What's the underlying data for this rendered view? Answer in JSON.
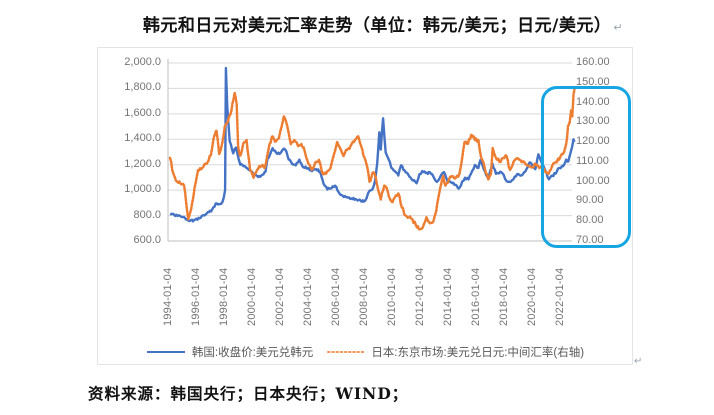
{
  "page": {
    "title": "韩元和日元对美元汇率走势（单位：韩元/美元；日元/美元）",
    "title_end_mark": "↵",
    "frame_end_mark": "↵",
    "source_note": "资料来源：韩国央行；日本央行；WIND；"
  },
  "colors": {
    "krw_line": "#4472C4",
    "jpy_line": "#ED7D31",
    "grid": "#D9D9D9",
    "axis_spine": "#BFBFBF",
    "axis_text": "#757575",
    "legend_text": "#595959",
    "highlight_box": "#16A5E3"
  },
  "chart_data": {
    "type": "line",
    "title": "韩元和日元对美元汇率走势（单位：韩元/美元；日元/美元）",
    "grid": true,
    "legend_position": "bottom",
    "x_ticks": [
      "1994-01-04",
      "1996-01-04",
      "1998-01-04",
      "2000-01-04",
      "2002-01-04",
      "2004-01-04",
      "2006-01-04",
      "2008-01-04",
      "2010-01-04",
      "2012-01-04",
      "2014-01-04",
      "2016-01-04",
      "2018-01-04",
      "2020-01-04",
      "2022-01-04"
    ],
    "y_left": {
      "unit": "韩元/美元",
      "min": 600,
      "max": 2000,
      "tick_labels": [
        "2,000.0",
        "1,800.0",
        "1,600.0",
        "1,400.0",
        "1,200.0",
        "1,000.0",
        "800.0",
        "600.0"
      ],
      "tick_values": [
        2000,
        1800,
        1600,
        1400,
        1200,
        1000,
        800,
        600
      ]
    },
    "y_right": {
      "unit": "日元/美元",
      "min": 70,
      "max": 160,
      "tick_labels": [
        "160.00",
        "150.00",
        "140.00",
        "130.00",
        "120.00",
        "110.00",
        "100.00",
        "90.00",
        "80.00",
        "70.00"
      ],
      "tick_values": [
        160,
        150,
        140,
        130,
        120,
        110,
        100,
        90,
        80,
        70
      ]
    },
    "series": [
      {
        "name": "韩国:收盘价:美元兑韩元",
        "axis": "left",
        "color": "#4472C4",
        "line_style": "solid",
        "points": [
          [
            1994.0,
            812
          ],
          [
            1994.3,
            806
          ],
          [
            1994.6,
            802
          ],
          [
            1995.0,
            788
          ],
          [
            1995.4,
            757
          ],
          [
            1995.8,
            768
          ],
          [
            1996.2,
            785
          ],
          [
            1996.6,
            815
          ],
          [
            1997.0,
            848
          ],
          [
            1997.25,
            895
          ],
          [
            1997.5,
            890
          ],
          [
            1997.75,
            912
          ],
          [
            1997.92,
            1000
          ],
          [
            1997.98,
            1960
          ],
          [
            1998.08,
            1650
          ],
          [
            1998.25,
            1385
          ],
          [
            1998.5,
            1290
          ],
          [
            1998.7,
            1335
          ],
          [
            1998.9,
            1240
          ],
          [
            1999.0,
            1200
          ],
          [
            1999.3,
            1190
          ],
          [
            1999.6,
            1160
          ],
          [
            1999.9,
            1135
          ],
          [
            2000.2,
            1112
          ],
          [
            2000.5,
            1115
          ],
          [
            2000.8,
            1145
          ],
          [
            2000.95,
            1250
          ],
          [
            2001.1,
            1275
          ],
          [
            2001.3,
            1330
          ],
          [
            2001.55,
            1295
          ],
          [
            2001.8,
            1285
          ],
          [
            2002.0,
            1315
          ],
          [
            2002.2,
            1320
          ],
          [
            2002.45,
            1240
          ],
          [
            2002.7,
            1205
          ],
          [
            2002.95,
            1195
          ],
          [
            2003.2,
            1240
          ],
          [
            2003.5,
            1180
          ],
          [
            2003.8,
            1170
          ],
          [
            2004.1,
            1150
          ],
          [
            2004.4,
            1165
          ],
          [
            2004.7,
            1145
          ],
          [
            2004.95,
            1045
          ],
          [
            2005.2,
            1005
          ],
          [
            2005.5,
            1015
          ],
          [
            2005.75,
            1035
          ],
          [
            2006.0,
            985
          ],
          [
            2006.3,
            955
          ],
          [
            2006.6,
            945
          ],
          [
            2006.9,
            935
          ],
          [
            2007.2,
            930
          ],
          [
            2007.5,
            925
          ],
          [
            2007.8,
            910
          ],
          [
            2008.0,
            940
          ],
          [
            2008.2,
            995
          ],
          [
            2008.4,
            1005
          ],
          [
            2008.6,
            1075
          ],
          [
            2008.75,
            1210
          ],
          [
            2008.9,
            1455
          ],
          [
            2009.0,
            1320
          ],
          [
            2009.17,
            1565
          ],
          [
            2009.35,
            1295
          ],
          [
            2009.55,
            1245
          ],
          [
            2009.75,
            1175
          ],
          [
            2010.0,
            1150
          ],
          [
            2010.25,
            1115
          ],
          [
            2010.45,
            1195
          ],
          [
            2010.7,
            1155
          ],
          [
            2010.95,
            1125
          ],
          [
            2011.2,
            1085
          ],
          [
            2011.55,
            1055
          ],
          [
            2011.75,
            1125
          ],
          [
            2011.95,
            1150
          ],
          [
            2012.2,
            1135
          ],
          [
            2012.5,
            1140
          ],
          [
            2012.8,
            1095
          ],
          [
            2013.0,
            1065
          ],
          [
            2013.25,
            1110
          ],
          [
            2013.5,
            1142
          ],
          [
            2013.75,
            1070
          ],
          [
            2014.0,
            1062
          ],
          [
            2014.25,
            1042
          ],
          [
            2014.55,
            1012
          ],
          [
            2014.8,
            1068
          ],
          [
            2015.0,
            1098
          ],
          [
            2015.25,
            1085
          ],
          [
            2015.5,
            1150
          ],
          [
            2015.7,
            1198
          ],
          [
            2015.95,
            1175
          ],
          [
            2016.1,
            1238
          ],
          [
            2016.35,
            1160
          ],
          [
            2016.65,
            1095
          ],
          [
            2016.95,
            1208
          ],
          [
            2017.2,
            1128
          ],
          [
            2017.5,
            1145
          ],
          [
            2017.75,
            1120
          ],
          [
            2017.95,
            1072
          ],
          [
            2018.2,
            1065
          ],
          [
            2018.45,
            1085
          ],
          [
            2018.7,
            1125
          ],
          [
            2018.95,
            1115
          ],
          [
            2019.2,
            1140
          ],
          [
            2019.45,
            1180
          ],
          [
            2019.6,
            1218
          ],
          [
            2019.8,
            1190
          ],
          [
            2020.0,
            1165
          ],
          [
            2020.22,
            1282
          ],
          [
            2020.4,
            1230
          ],
          [
            2020.6,
            1185
          ],
          [
            2020.8,
            1135
          ],
          [
            2020.97,
            1085
          ],
          [
            2021.2,
            1115
          ],
          [
            2021.45,
            1130
          ],
          [
            2021.7,
            1175
          ],
          [
            2021.9,
            1190
          ],
          [
            2022.05,
            1200
          ],
          [
            2022.2,
            1240
          ],
          [
            2022.35,
            1225
          ],
          [
            2022.5,
            1290
          ],
          [
            2022.62,
            1340
          ],
          [
            2022.72,
            1400
          ],
          [
            2022.78,
            1380
          ]
        ]
      },
      {
        "name": "日本:东京市场:美元兑日元:中间汇率(右轴)",
        "axis": "right",
        "color": "#ED7D31",
        "line_style": "dotted",
        "points": [
          [
            1994.0,
            112
          ],
          [
            1994.25,
            104
          ],
          [
            1994.5,
            100
          ],
          [
            1994.75,
            99
          ],
          [
            1995.0,
            98
          ],
          [
            1995.3,
            81
          ],
          [
            1995.5,
            86
          ],
          [
            1995.75,
            97
          ],
          [
            1996.0,
            106
          ],
          [
            1996.3,
            107
          ],
          [
            1996.6,
            109
          ],
          [
            1996.9,
            113
          ],
          [
            1997.1,
            122
          ],
          [
            1997.3,
            126
          ],
          [
            1997.5,
            114
          ],
          [
            1997.7,
            119
          ],
          [
            1997.9,
            128
          ],
          [
            1998.1,
            130
          ],
          [
            1998.3,
            134
          ],
          [
            1998.6,
            145
          ],
          [
            1998.75,
            139
          ],
          [
            1998.85,
            118
          ],
          [
            1999.0,
            113
          ],
          [
            1999.2,
            119
          ],
          [
            1999.45,
            121
          ],
          [
            1999.7,
            106
          ],
          [
            1999.95,
            102
          ],
          [
            2000.2,
            106
          ],
          [
            2000.5,
            108
          ],
          [
            2000.75,
            107
          ],
          [
            2001.0,
            116
          ],
          [
            2001.25,
            123
          ],
          [
            2001.5,
            120
          ],
          [
            2001.75,
            122
          ],
          [
            2001.95,
            128
          ],
          [
            2002.1,
            133
          ],
          [
            2002.35,
            128
          ],
          [
            2002.6,
            119
          ],
          [
            2002.85,
            121
          ],
          [
            2003.1,
            118
          ],
          [
            2003.35,
            119
          ],
          [
            2003.6,
            115
          ],
          [
            2003.85,
            109
          ],
          [
            2004.1,
            106
          ],
          [
            2004.35,
            110
          ],
          [
            2004.6,
            111
          ],
          [
            2004.85,
            104
          ],
          [
            2005.1,
            104
          ],
          [
            2005.35,
            106
          ],
          [
            2005.6,
            112
          ],
          [
            2005.9,
            120
          ],
          [
            2006.1,
            117
          ],
          [
            2006.35,
            113
          ],
          [
            2006.6,
            116
          ],
          [
            2006.85,
            118
          ],
          [
            2007.1,
            120
          ],
          [
            2007.4,
            123
          ],
          [
            2007.6,
            118
          ],
          [
            2007.85,
            112
          ],
          [
            2008.05,
            107
          ],
          [
            2008.2,
            100
          ],
          [
            2008.45,
            105
          ],
          [
            2008.65,
            102
          ],
          [
            2008.85,
            95
          ],
          [
            2009.0,
            91
          ],
          [
            2009.25,
            98
          ],
          [
            2009.5,
            95
          ],
          [
            2009.75,
            90
          ],
          [
            2010.0,
            92
          ],
          [
            2010.25,
            94
          ],
          [
            2010.5,
            87
          ],
          [
            2010.75,
            83
          ],
          [
            2011.0,
            82
          ],
          [
            2011.25,
            81
          ],
          [
            2011.5,
            78
          ],
          [
            2011.8,
            76
          ],
          [
            2012.0,
            77
          ],
          [
            2012.25,
            82
          ],
          [
            2012.5,
            79
          ],
          [
            2012.75,
            80
          ],
          [
            2012.95,
            85
          ],
          [
            2013.1,
            92
          ],
          [
            2013.3,
            99
          ],
          [
            2013.45,
            103
          ],
          [
            2013.6,
            98
          ],
          [
            2013.85,
            101
          ],
          [
            2014.1,
            103
          ],
          [
            2014.35,
            102
          ],
          [
            2014.6,
            104
          ],
          [
            2014.8,
            112
          ],
          [
            2014.97,
            120
          ],
          [
            2015.2,
            119
          ],
          [
            2015.45,
            124
          ],
          [
            2015.7,
            121
          ],
          [
            2015.95,
            121
          ],
          [
            2016.15,
            112
          ],
          [
            2016.4,
            107
          ],
          [
            2016.65,
            101
          ],
          [
            2016.85,
            104
          ],
          [
            2016.97,
            117
          ],
          [
            2017.2,
            112
          ],
          [
            2017.45,
            110
          ],
          [
            2017.7,
            112
          ],
          [
            2017.95,
            113
          ],
          [
            2018.2,
            106
          ],
          [
            2018.45,
            110
          ],
          [
            2018.7,
            112
          ],
          [
            2018.95,
            111
          ],
          [
            2019.2,
            110
          ],
          [
            2019.45,
            108
          ],
          [
            2019.7,
            107
          ],
          [
            2019.95,
            109
          ],
          [
            2020.2,
            108
          ],
          [
            2020.45,
            107
          ],
          [
            2020.7,
            105
          ],
          [
            2020.95,
            104
          ],
          [
            2021.2,
            108
          ],
          [
            2021.45,
            110
          ],
          [
            2021.7,
            111
          ],
          [
            2021.9,
            114
          ],
          [
            2022.05,
            115
          ],
          [
            2022.2,
            119
          ],
          [
            2022.33,
            128
          ],
          [
            2022.45,
            130
          ],
          [
            2022.55,
            136
          ],
          [
            2022.63,
            133
          ],
          [
            2022.72,
            144
          ],
          [
            2022.8,
            147
          ]
        ]
      }
    ],
    "annotation_box": {
      "description": "cyan rounded-rectangle highlight over the 2021-2022 right edge of the chart (right-axis range 70.00-140.00)",
      "color": "#16A5E3"
    }
  }
}
